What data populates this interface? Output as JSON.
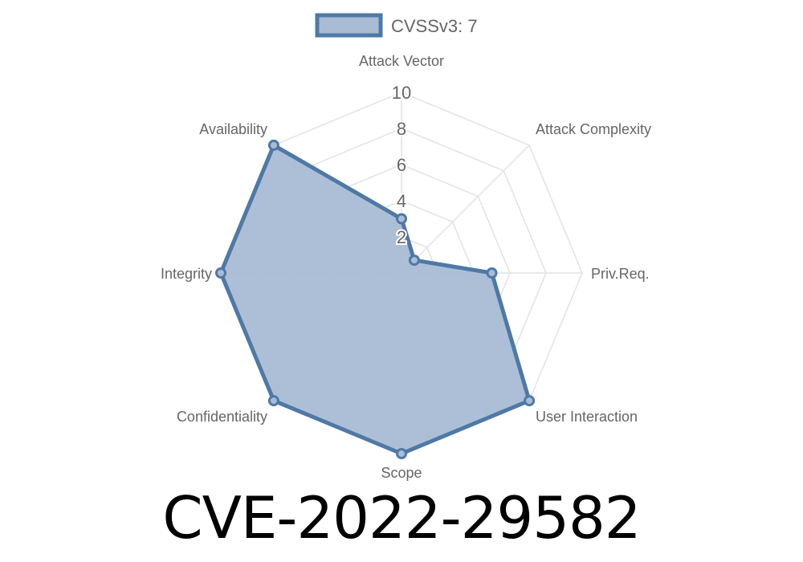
{
  "title": "CVE-2022-29582",
  "chart_data": {
    "type": "radar",
    "axes": [
      "Attack Vector",
      "Attack Complexity",
      "Priv.Req.",
      "User Interaction",
      "Scope",
      "Confidentiality",
      "Integrity",
      "Availability"
    ],
    "series": [
      {
        "name": "CVSSv3: 7",
        "values": [
          3,
          1,
          5,
          10,
          10,
          10,
          10,
          10
        ],
        "color": "#4e79a7",
        "fill": "#a9bcd4"
      }
    ],
    "rlim": [
      0,
      10
    ],
    "ticks": [
      "2",
      "4",
      "6",
      "8",
      "10"
    ],
    "grid": true,
    "legend": "top"
  }
}
